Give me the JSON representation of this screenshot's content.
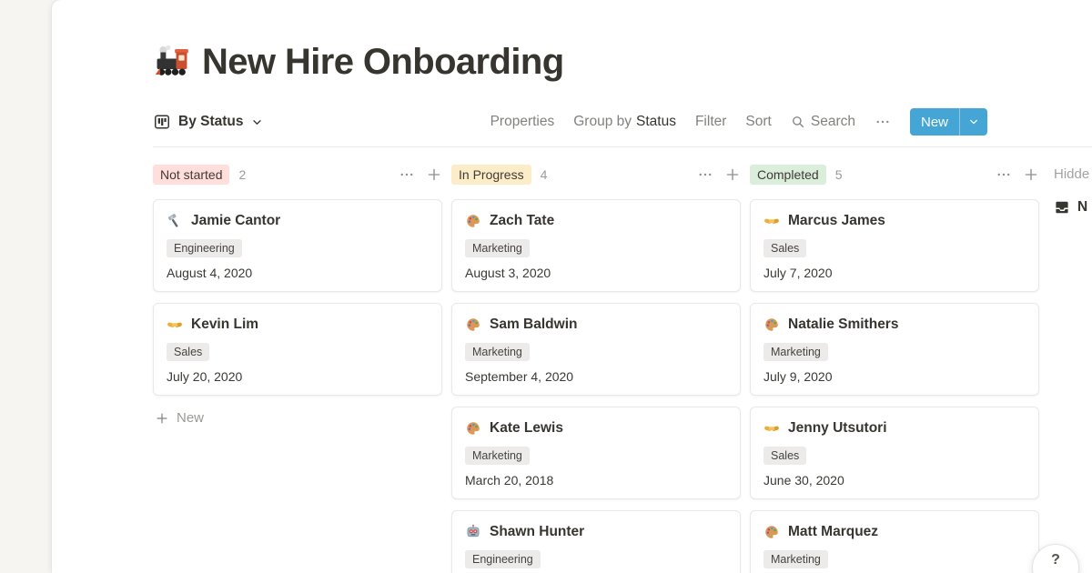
{
  "page": {
    "icon": "locomotive",
    "title": "New Hire Onboarding"
  },
  "toolbar": {
    "view": {
      "icon": "board",
      "label": "By Status"
    },
    "menu": {
      "properties": "Properties",
      "group_by_prefix": "Group by",
      "group_by_value": "Status",
      "filter": "Filter",
      "sort": "Sort",
      "search": "Search"
    },
    "new_button": {
      "label": "New"
    }
  },
  "colors": {
    "accent_blue": "#45A6D5",
    "badge_not_started": "#FFDEDB",
    "badge_in_progress": "#FDECC8",
    "badge_completed": "#DBEDDB",
    "tag_gray": "#ECEBE9"
  },
  "board": {
    "columns": [
      {
        "name": "Not started",
        "count": "2",
        "badge_color": "#FFDEDB",
        "cards": [
          {
            "icon": "hammer",
            "name": "Jamie Cantor",
            "tag": "Engineering",
            "date": "August 4, 2020"
          },
          {
            "icon": "handshake",
            "name": "Kevin Lim",
            "tag": "Sales",
            "date": "July 20, 2020"
          }
        ],
        "new_label": "New"
      },
      {
        "name": "In Progress",
        "count": "4",
        "badge_color": "#FDECC8",
        "cards": [
          {
            "icon": "palette",
            "name": "Zach Tate",
            "tag": "Marketing",
            "date": "August 3, 2020"
          },
          {
            "icon": "palette",
            "name": "Sam Baldwin",
            "tag": "Marketing",
            "date": "September 4, 2020"
          },
          {
            "icon": "palette",
            "name": "Kate Lewis",
            "tag": "Marketing",
            "date": "March 20, 2018"
          },
          {
            "icon": "robot",
            "name": "Shawn Hunter",
            "tag": "Engineering",
            "date": ""
          }
        ],
        "new_label": ""
      },
      {
        "name": "Completed",
        "count": "5",
        "badge_color": "#DBEDDB",
        "cards": [
          {
            "icon": "handshake",
            "name": "Marcus James",
            "tag": "Sales",
            "date": "July 7, 2020"
          },
          {
            "icon": "palette",
            "name": "Natalie Smithers",
            "tag": "Marketing",
            "date": "July 9, 2020"
          },
          {
            "icon": "handshake",
            "name": "Jenny Utsutori",
            "tag": "Sales",
            "date": "June 30, 2020"
          },
          {
            "icon": "palette",
            "name": "Matt Marquez",
            "tag": "Marketing",
            "date": ""
          }
        ],
        "new_label": ""
      }
    ],
    "hidden": {
      "label": "Hidde",
      "group_icon": "inbox",
      "group_label": "N"
    }
  },
  "help_button": {
    "label": "?"
  }
}
